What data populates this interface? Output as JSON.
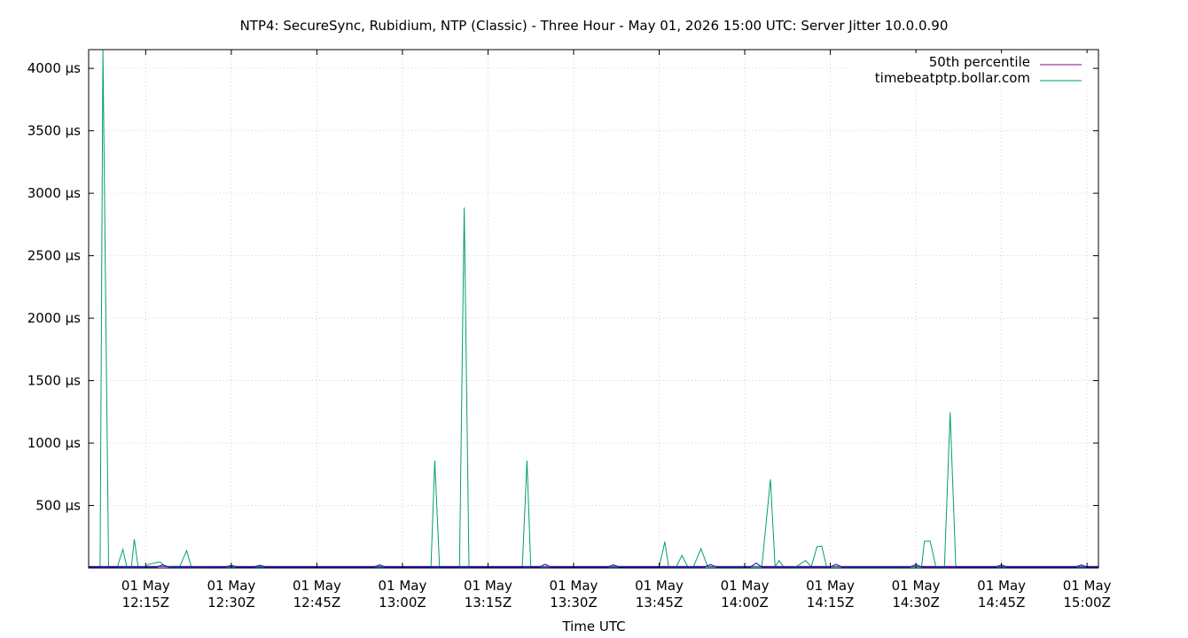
{
  "chart_data": {
    "type": "line",
    "title": "NTP4: SecureSync, Rubidium, NTP (Classic) - Three Hour - May 01, 2026 15:00 UTC: Server Jitter 10.0.0.90",
    "xlabel": "Time UTC",
    "ylabel": "",
    "xlim": [
      "2026-05-01T12:05Z",
      "2026-05-01T15:02Z"
    ],
    "ylim": [
      0,
      4150
    ],
    "grid": true,
    "legend_position": "top-right",
    "x_ticks": [
      {
        "t": "2026-05-01T12:15Z",
        "line1": "01 May",
        "line2": "12:15Z"
      },
      {
        "t": "2026-05-01T12:30Z",
        "line1": "01 May",
        "line2": "12:30Z"
      },
      {
        "t": "2026-05-01T12:45Z",
        "line1": "01 May",
        "line2": "12:45Z"
      },
      {
        "t": "2026-05-01T13:00Z",
        "line1": "01 May",
        "line2": "13:00Z"
      },
      {
        "t": "2026-05-01T13:15Z",
        "line1": "01 May",
        "line2": "13:15Z"
      },
      {
        "t": "2026-05-01T13:30Z",
        "line1": "01 May",
        "line2": "13:30Z"
      },
      {
        "t": "2026-05-01T13:45Z",
        "line1": "01 May",
        "line2": "13:45Z"
      },
      {
        "t": "2026-05-01T14:00Z",
        "line1": "01 May",
        "line2": "14:00Z"
      },
      {
        "t": "2026-05-01T14:15Z",
        "line1": "01 May",
        "line2": "14:15Z"
      },
      {
        "t": "2026-05-01T14:30Z",
        "line1": "01 May",
        "line2": "14:30Z"
      },
      {
        "t": "2026-05-01T14:45Z",
        "line1": "01 May",
        "line2": "14:45Z"
      },
      {
        "t": "2026-05-01T15:00Z",
        "line1": "01 May",
        "line2": "15:00Z"
      }
    ],
    "y_ticks": [
      {
        "value": 500,
        "label": "500 µs"
      },
      {
        "value": 1000,
        "label": "1000 µs"
      },
      {
        "value": 1500,
        "label": "1500 µs"
      },
      {
        "value": 2000,
        "label": "2000 µs"
      },
      {
        "value": 2500,
        "label": "2500 µs"
      },
      {
        "value": 3000,
        "label": "3000 µs"
      },
      {
        "value": 3500,
        "label": "3500 µs"
      },
      {
        "value": 4000,
        "label": "4000 µs"
      }
    ],
    "series": [
      {
        "name": "50th percentile",
        "color": "#8b008b",
        "points": [
          [
            "2026-05-01T12:05Z",
            12
          ],
          [
            "2026-05-01T15:02Z",
            12
          ]
        ]
      },
      {
        "name": "timebeatptp.bollar.com",
        "color": "#009e73",
        "points": [
          [
            "2026-05-01T12:05:00Z",
            5
          ],
          [
            "2026-05-01T12:06:00Z",
            5
          ],
          [
            "2026-05-01T12:07:00Z",
            5
          ],
          [
            "2026-05-01T12:07:30Z",
            4150
          ],
          [
            "2026-05-01T12:08:30Z",
            5
          ],
          [
            "2026-05-01T12:10:00Z",
            5
          ],
          [
            "2026-05-01T12:11:00Z",
            150
          ],
          [
            "2026-05-01T12:11:40Z",
            10
          ],
          [
            "2026-05-01T12:12:30Z",
            10
          ],
          [
            "2026-05-01T12:13:00Z",
            230
          ],
          [
            "2026-05-01T12:13:40Z",
            10
          ],
          [
            "2026-05-01T12:15:00Z",
            10
          ],
          [
            "2026-05-01T12:15:30Z",
            30
          ],
          [
            "2026-05-01T12:17:30Z",
            50
          ],
          [
            "2026-05-01T12:18:30Z",
            10
          ],
          [
            "2026-05-01T12:21:00Z",
            15
          ],
          [
            "2026-05-01T12:22:10Z",
            140
          ],
          [
            "2026-05-01T12:23:00Z",
            10
          ],
          [
            "2026-05-01T12:40:00Z",
            5
          ],
          [
            "2026-05-01T13:00:00Z",
            5
          ],
          [
            "2026-05-01T13:05:00Z",
            5
          ],
          [
            "2026-05-01T13:05:40Z",
            860
          ],
          [
            "2026-05-01T13:06:30Z",
            5
          ],
          [
            "2026-05-01T13:10:00Z",
            5
          ],
          [
            "2026-05-01T13:10:50Z",
            2885
          ],
          [
            "2026-05-01T13:11:40Z",
            5
          ],
          [
            "2026-05-01T13:21:00Z",
            5
          ],
          [
            "2026-05-01T13:21:50Z",
            860
          ],
          [
            "2026-05-01T13:22:30Z",
            5
          ],
          [
            "2026-05-01T13:40:00Z",
            5
          ],
          [
            "2026-05-01T13:45:00Z",
            5
          ],
          [
            "2026-05-01T13:46:00Z",
            210
          ],
          [
            "2026-05-01T13:46:40Z",
            10
          ],
          [
            "2026-05-01T13:48:00Z",
            10
          ],
          [
            "2026-05-01T13:49:00Z",
            100
          ],
          [
            "2026-05-01T13:50:00Z",
            10
          ],
          [
            "2026-05-01T13:51:00Z",
            10
          ],
          [
            "2026-05-01T13:52:20Z",
            155
          ],
          [
            "2026-05-01T13:53:30Z",
            10
          ],
          [
            "2026-05-01T14:03:00Z",
            10
          ],
          [
            "2026-05-01T14:04:30Z",
            710
          ],
          [
            "2026-05-01T14:05:20Z",
            10
          ],
          [
            "2026-05-01T14:06:00Z",
            60
          ],
          [
            "2026-05-01T14:06:50Z",
            10
          ],
          [
            "2026-05-01T14:09:00Z",
            10
          ],
          [
            "2026-05-01T14:10:40Z",
            60
          ],
          [
            "2026-05-01T14:11:40Z",
            10
          ],
          [
            "2026-05-01T14:12:40Z",
            170
          ],
          [
            "2026-05-01T14:13:30Z",
            175
          ],
          [
            "2026-05-01T14:14:20Z",
            10
          ],
          [
            "2026-05-01T14:31:00Z",
            10
          ],
          [
            "2026-05-01T14:31:30Z",
            215
          ],
          [
            "2026-05-01T14:32:30Z",
            215
          ],
          [
            "2026-05-01T14:33:30Z",
            10
          ],
          [
            "2026-05-01T14:35:00Z",
            10
          ],
          [
            "2026-05-01T14:36:00Z",
            1245
          ],
          [
            "2026-05-01T14:37:00Z",
            5
          ],
          [
            "2026-05-01T15:02:00Z",
            5
          ]
        ]
      },
      {
        "name": "",
        "color": "#0000cd",
        "points": [
          [
            "2026-05-01T12:05:00Z",
            8
          ],
          [
            "2026-05-01T12:17:00Z",
            8
          ],
          [
            "2026-05-01T12:18:00Z",
            25
          ],
          [
            "2026-05-01T12:19:00Z",
            8
          ],
          [
            "2026-05-01T12:29:00Z",
            8
          ],
          [
            "2026-05-01T12:30:00Z",
            20
          ],
          [
            "2026-05-01T12:31:00Z",
            8
          ],
          [
            "2026-05-01T12:34:00Z",
            8
          ],
          [
            "2026-05-01T12:35:00Z",
            22
          ],
          [
            "2026-05-01T12:36:00Z",
            8
          ],
          [
            "2026-05-01T12:55:00Z",
            8
          ],
          [
            "2026-05-01T12:56:00Z",
            25
          ],
          [
            "2026-05-01T12:57:00Z",
            8
          ],
          [
            "2026-05-01T13:24:00Z",
            8
          ],
          [
            "2026-05-01T13:25:00Z",
            30
          ],
          [
            "2026-05-01T13:26:00Z",
            8
          ],
          [
            "2026-05-01T13:36:00Z",
            8
          ],
          [
            "2026-05-01T13:37:00Z",
            25
          ],
          [
            "2026-05-01T13:38:00Z",
            8
          ],
          [
            "2026-05-01T13:53:00Z",
            8
          ],
          [
            "2026-05-01T13:54:00Z",
            28
          ],
          [
            "2026-05-01T13:55:00Z",
            8
          ],
          [
            "2026-05-01T14:01:00Z",
            8
          ],
          [
            "2026-05-01T14:02:00Z",
            40
          ],
          [
            "2026-05-01T14:03:00Z",
            8
          ],
          [
            "2026-05-01T14:15:00Z",
            8
          ],
          [
            "2026-05-01T14:16:00Z",
            30
          ],
          [
            "2026-05-01T14:17:00Z",
            8
          ],
          [
            "2026-05-01T14:29:00Z",
            8
          ],
          [
            "2026-05-01T14:30:00Z",
            28
          ],
          [
            "2026-05-01T14:31:00Z",
            8
          ],
          [
            "2026-05-01T14:44:00Z",
            8
          ],
          [
            "2026-05-01T14:45:00Z",
            25
          ],
          [
            "2026-05-01T14:46:00Z",
            8
          ],
          [
            "2026-05-01T14:58:00Z",
            8
          ],
          [
            "2026-05-01T14:59:00Z",
            25
          ],
          [
            "2026-05-01T15:00:00Z",
            8
          ],
          [
            "2026-05-01T15:02:00Z",
            8
          ]
        ]
      }
    ]
  }
}
